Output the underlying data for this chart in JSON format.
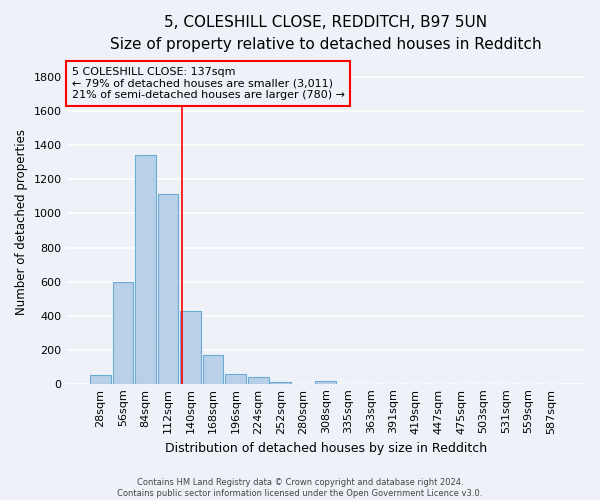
{
  "title1": "5, COLESHILL CLOSE, REDDITCH, B97 5UN",
  "title2": "Size of property relative to detached houses in Redditch",
  "xlabel": "Distribution of detached houses by size in Redditch",
  "ylabel": "Number of detached properties",
  "footnote": "Contains HM Land Registry data © Crown copyright and database right 2024.\nContains public sector information licensed under the Open Government Licence v3.0.",
  "bar_labels": [
    "28sqm",
    "56sqm",
    "84sqm",
    "112sqm",
    "140sqm",
    "168sqm",
    "196sqm",
    "224sqm",
    "252sqm",
    "280sqm",
    "308sqm",
    "335sqm",
    "363sqm",
    "391sqm",
    "419sqm",
    "447sqm",
    "475sqm",
    "503sqm",
    "531sqm",
    "559sqm",
    "587sqm"
  ],
  "bar_values": [
    50,
    595,
    1345,
    1115,
    425,
    170,
    58,
    38,
    12,
    0,
    18,
    0,
    0,
    0,
    0,
    0,
    0,
    0,
    0,
    0,
    0
  ],
  "bar_color": "#b8d0e8",
  "bar_edge_color": "#6aaad4",
  "vline_x": 3.62,
  "vline_color": "red",
  "annotation_line1": "5 COLESHILL CLOSE: 137sqm",
  "annotation_line2": "← 79% of detached houses are smaller (3,011)",
  "annotation_line3": "21% of semi-detached houses are larger (780) →",
  "ylim": [
    0,
    1900
  ],
  "yticks": [
    0,
    200,
    400,
    600,
    800,
    1000,
    1200,
    1400,
    1600,
    1800
  ],
  "bg_color": "#eef2f8",
  "grid_color": "#ffffff",
  "title1_fontsize": 11,
  "title2_fontsize": 9.5,
  "xlabel_fontsize": 9,
  "ylabel_fontsize": 8.5,
  "tick_fontsize": 8,
  "annot_fontsize": 8
}
